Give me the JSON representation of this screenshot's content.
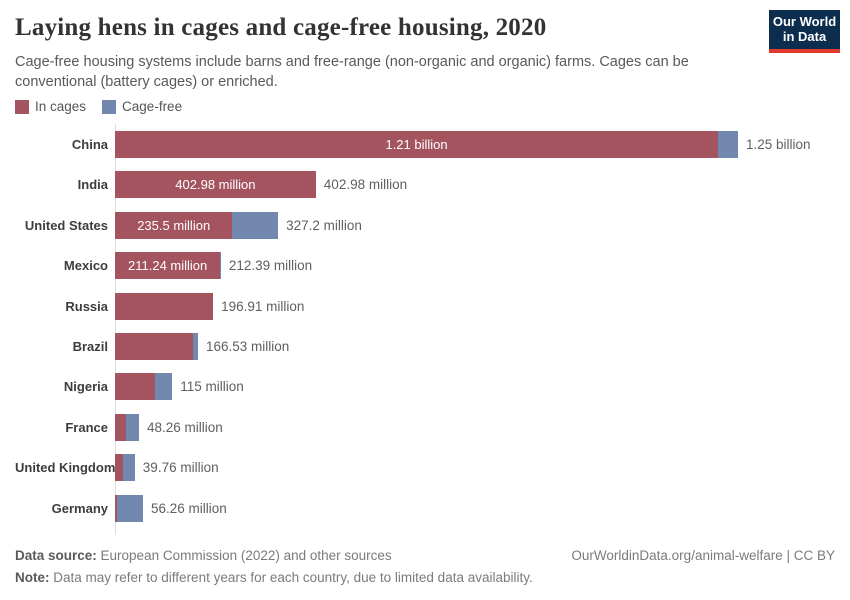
{
  "header": {
    "title": "Laying hens in cages and cage-free housing, 2020",
    "subtitle": "Cage-free housing systems include barns and free-range (non-organic and organic) farms. Cages can be conventional (battery cages) or enriched.",
    "logo_line1": "Our World",
    "logo_line2": "in Data"
  },
  "colors": {
    "in_cages": "#a4545f",
    "cage_free": "#7288ae",
    "logo_bg": "#0d2d4f",
    "logo_stripe": "#e0392e",
    "axis": "#dddddd"
  },
  "legend": {
    "items": [
      {
        "label": "In cages",
        "color": "#a4545f"
      },
      {
        "label": "Cage-free",
        "color": "#7288ae"
      }
    ]
  },
  "chart_data": {
    "type": "bar",
    "orientation": "horizontal",
    "stacked": true,
    "unit": "hens (millions)",
    "xlim": [
      0,
      1250
    ],
    "grid": false,
    "series_names": [
      "In cages",
      "Cage-free"
    ],
    "rows": [
      {
        "country": "China",
        "in_cages": 1210,
        "cage_free": 40,
        "in_cages_label": "1.21 billion",
        "total_label": "1.25 billion"
      },
      {
        "country": "India",
        "in_cages": 402.98,
        "cage_free": 0,
        "in_cages_label": "402.98 million",
        "total_label": "402.98 million"
      },
      {
        "country": "United States",
        "in_cages": 235.5,
        "cage_free": 91.7,
        "in_cages_label": "235.5 million",
        "total_label": "327.2 million"
      },
      {
        "country": "Mexico",
        "in_cages": 211.24,
        "cage_free": 1.15,
        "in_cages_label": "211.24 million",
        "total_label": "212.39 million"
      },
      {
        "country": "Russia",
        "in_cages": 196.91,
        "cage_free": 0,
        "in_cages_label": "",
        "total_label": "196.91 million"
      },
      {
        "country": "Brazil",
        "in_cages": 156.5,
        "cage_free": 10.03,
        "in_cages_label": "",
        "total_label": "166.53 million"
      },
      {
        "country": "Nigeria",
        "in_cages": 80,
        "cage_free": 35,
        "in_cages_label": "",
        "total_label": "115 million"
      },
      {
        "country": "France",
        "in_cages": 22.3,
        "cage_free": 25.96,
        "in_cages_label": "",
        "total_label": "48.26 million"
      },
      {
        "country": "United Kingdom",
        "in_cages": 16,
        "cage_free": 23.76,
        "in_cages_label": "",
        "total_label": "39.76 million"
      },
      {
        "country": "Germany",
        "in_cages": 4,
        "cage_free": 52.26,
        "in_cages_label": "",
        "total_label": "56.26 million"
      }
    ]
  },
  "footer": {
    "source_label": "Data source:",
    "source_text": " European Commission (2022) and other sources",
    "note_label": "Note:",
    "note_text": " Data may refer to different years for each country, due to limited data availability.",
    "link": "OurWorldinData.org/animal-welfare | CC BY"
  }
}
